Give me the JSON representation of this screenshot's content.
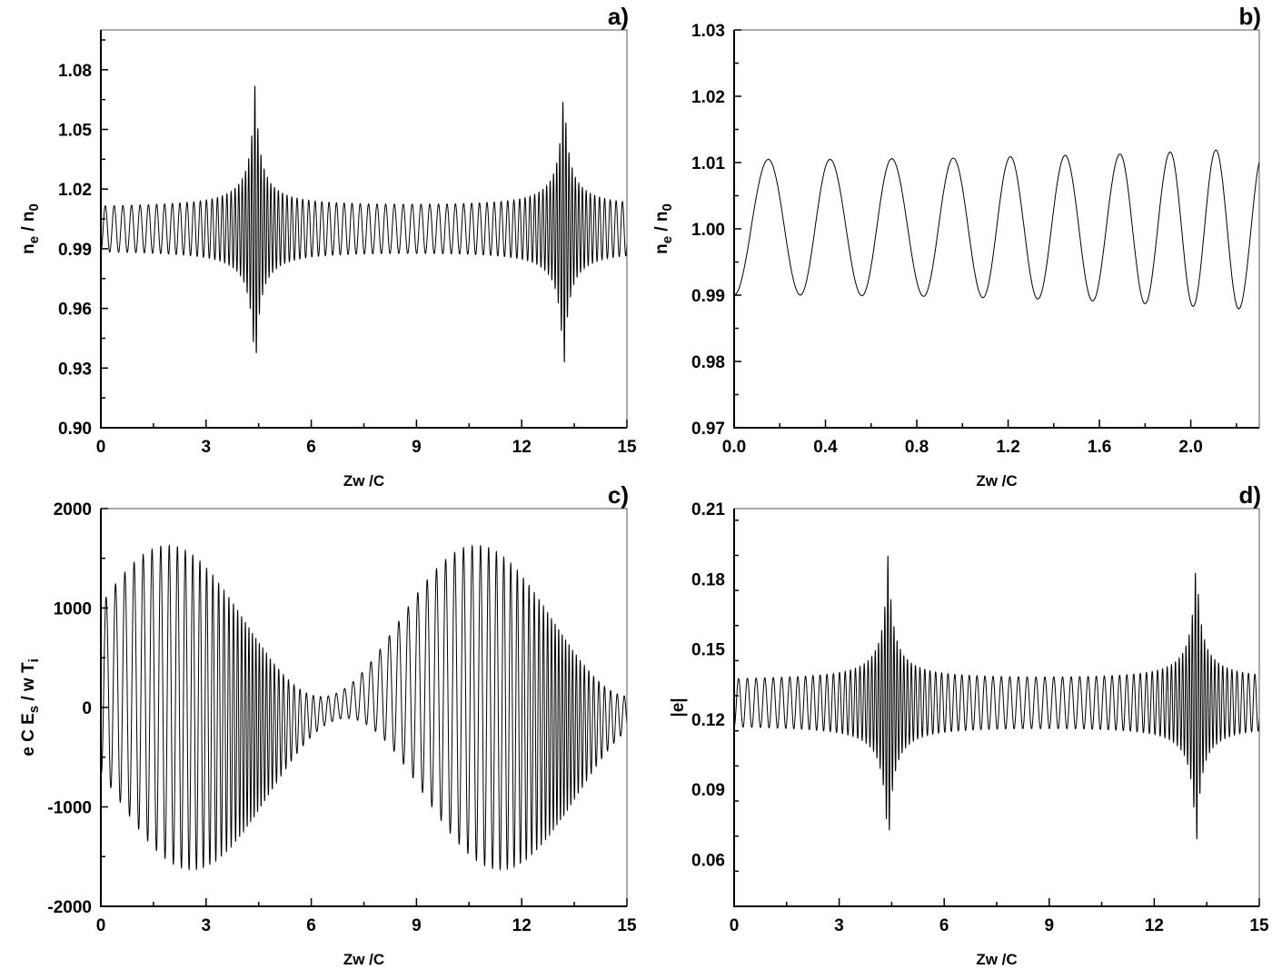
{
  "figure": {
    "panels": [
      {
        "id": "a",
        "tag": "a)"
      },
      {
        "id": "b",
        "tag": "b)"
      },
      {
        "id": "c",
        "tag": "c)"
      },
      {
        "id": "d",
        "tag": "d)"
      }
    ]
  },
  "chart_data": [
    {
      "panel": "a)",
      "type": "line",
      "title": "",
      "xlabel": "Zw /C",
      "ylabel": "n_e / n_0",
      "xlim": [
        0,
        15
      ],
      "ylim": [
        0.9,
        1.1
      ],
      "xticks": [
        "0",
        "3",
        "6",
        "9",
        "12",
        "15"
      ],
      "yticks": [
        "0.90",
        "0.93",
        "0.96",
        "0.99",
        "1.02",
        "1.05",
        "1.08"
      ],
      "grid": false,
      "description": "Rapid oscillation about 1.00 with baseline amplitude ~0.01 (range 0.99-1.01); envelope peaks sharply at Zw/C ≈ 4.4 (max ≈1.084, min ≈0.920) and at Zw/C ≈ 13.2 (max ≈1.082, min ≈0.922)",
      "series": [
        {
          "name": "n_e/n_0",
          "baseline": 1.0,
          "base_amplitude": 0.01,
          "peaks": [
            {
              "x": 4.4,
              "max": 1.084,
              "min": 0.92
            },
            {
              "x": 13.2,
              "max": 1.082,
              "min": 0.922
            }
          ]
        }
      ]
    },
    {
      "panel": "b)",
      "type": "line",
      "title": "",
      "xlabel": "Zw /C",
      "ylabel": "n_e / n_0",
      "xlim": [
        0.0,
        2.3
      ],
      "ylim": [
        0.97,
        1.03
      ],
      "xticks": [
        "0.0",
        "0.4",
        "0.8",
        "1.2",
        "1.6",
        "2.0"
      ],
      "yticks": [
        "0.97",
        "0.98",
        "0.99",
        "1.00",
        "1.01",
        "1.02",
        "1.03"
      ],
      "grid": false,
      "description": "Zoom of panel a: near-sinusoidal oscillation with slowly growing amplitude",
      "series": [
        {
          "name": "n_e/n_0",
          "maxima": [
            {
              "x": 0.15,
              "y": 1.0105
            },
            {
              "x": 0.42,
              "y": 1.0105
            },
            {
              "x": 0.69,
              "y": 1.0106
            },
            {
              "x": 0.96,
              "y": 1.0107
            },
            {
              "x": 1.21,
              "y": 1.0109
            },
            {
              "x": 1.45,
              "y": 1.0111
            },
            {
              "x": 1.69,
              "y": 1.0113
            },
            {
              "x": 1.91,
              "y": 1.0116
            },
            {
              "x": 2.11,
              "y": 1.0119
            }
          ],
          "minima": [
            {
              "x": 0.0,
              "y": 0.99
            },
            {
              "x": 0.29,
              "y": 0.99
            },
            {
              "x": 0.56,
              "y": 0.9899
            },
            {
              "x": 0.83,
              "y": 0.9898
            },
            {
              "x": 1.09,
              "y": 0.9896
            },
            {
              "x": 1.33,
              "y": 0.9894
            },
            {
              "x": 1.57,
              "y": 0.9891
            },
            {
              "x": 1.8,
              "y": 0.9887
            },
            {
              "x": 2.01,
              "y": 0.9883
            },
            {
              "x": 2.21,
              "y": 0.9879
            }
          ]
        }
      ]
    },
    {
      "panel": "c)",
      "type": "line",
      "title": "",
      "xlabel": "Zw /C",
      "ylabel": "e C E_s / w T_i",
      "xlim": [
        0,
        15
      ],
      "ylim": [
        -2000,
        2000
      ],
      "xticks": [
        "0",
        "3",
        "6",
        "9",
        "12",
        "15"
      ],
      "yticks": [
        "-2000",
        "-1000",
        "0",
        "1000",
        "2000"
      ],
      "grid": false,
      "description": "Fast oscillation riding on slow envelopes: upper envelope max ≈1640 at x≈2 and x≈10.7; lower envelope min ≈-1640 at x≈7; fast oscillation compresses near x≈4.4 and x≈13.2",
      "series": [
        {
          "name": "eCEs/wTi",
          "upper_envelope_max": 1640,
          "lower_envelope_min": -1640,
          "start_value": -950
        }
      ]
    },
    {
      "panel": "d)",
      "type": "line",
      "title": "",
      "xlabel": "Zw /C",
      "ylabel": "|e|",
      "xlim": [
        0,
        15
      ],
      "ylim": [
        0.04,
        0.21
      ],
      "xticks": [
        "0",
        "3",
        "6",
        "9",
        "12",
        "15"
      ],
      "yticks": [
        "0.06",
        "0.09",
        "0.12",
        "0.15",
        "0.18",
        "0.21"
      ],
      "grid": false,
      "description": "Oscillation about ~0.127 with baseline range 0.118-0.136; envelope peaks at Zw/C ≈ 4.4 (max ≈0.197, min ≈0.054) and at ≈13.2 (max ≈0.195, min ≈0.056)",
      "series": [
        {
          "name": "|e|",
          "baseline": 0.127,
          "base_amplitude": 0.009,
          "peaks": [
            {
              "x": 4.4,
              "max": 0.197,
              "min": 0.054
            },
            {
              "x": 13.2,
              "max": 0.195,
              "min": 0.056
            }
          ]
        }
      ]
    }
  ]
}
